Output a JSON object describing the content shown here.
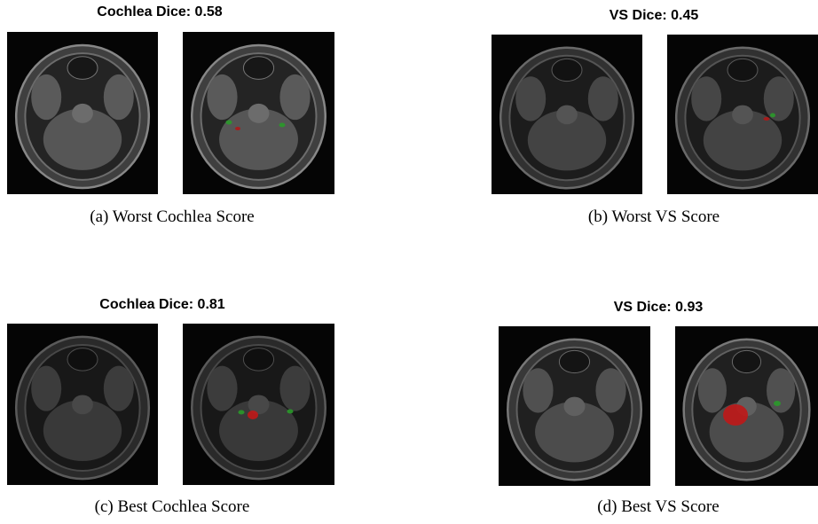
{
  "panels": [
    {
      "title": "Cochlea Dice: 0.58",
      "caption": "(a) Worst Cochlea Score"
    },
    {
      "title": "VS Dice: 0.45",
      "caption": "(b) Worst VS Score"
    },
    {
      "title": "Cochlea Dice: 0.81",
      "caption": "(c) Best Cochlea Score"
    },
    {
      "title": "VS Dice: 0.93",
      "caption": "(d) Best VS Score"
    }
  ]
}
